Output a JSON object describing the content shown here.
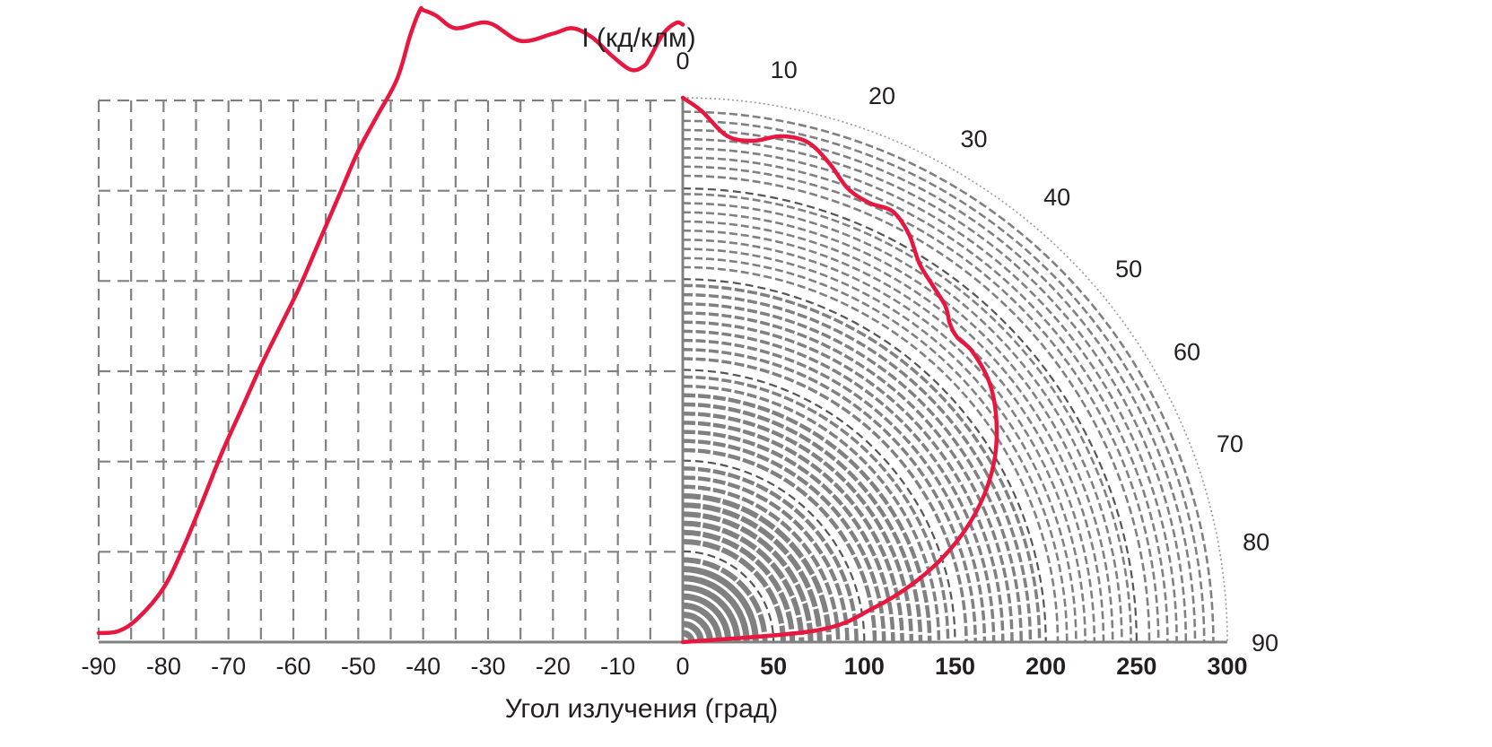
{
  "chart_data": {
    "type": "line",
    "y_axis_title": "I (кд/клм)",
    "x_axis_title": "Угол излучения (град)",
    "x_ticks": [
      "-90",
      "-80",
      "-70",
      "-60",
      "-50",
      "-40",
      "-30",
      "-20",
      "-10",
      "0"
    ],
    "r_ticks": [
      "50",
      "100",
      "150",
      "200",
      "250",
      "300"
    ],
    "angle_ticks": [
      "0",
      "10",
      "20",
      "30",
      "40",
      "50",
      "60",
      "70",
      "80",
      "90"
    ],
    "xlim": [
      -90,
      0
    ],
    "r_range": [
      0,
      300
    ],
    "grid": true,
    "colors": {
      "curve": "#e8173f",
      "grid": "#808080",
      "axis": "#808080",
      "text": "#231f20"
    },
    "series": [
      {
        "values_cartesian": {
          "x": [
            -90,
            -87,
            -84,
            -80,
            -77,
            -74,
            -71,
            -68,
            -65,
            -62,
            -59,
            -56,
            -53,
            -50,
            -47,
            -44,
            -42,
            -40.5,
            -40,
            -38,
            -35,
            -30,
            -25,
            -20,
            -17,
            -14,
            -11,
            -8,
            -6,
            -5,
            -3,
            -1,
            0
          ],
          "y": [
            5,
            6,
            13,
            30,
            52,
            78,
            105,
            129,
            153,
            175,
            197,
            222,
            247,
            272,
            292,
            312,
            336,
            350,
            350,
            347,
            340,
            343,
            333,
            337,
            340,
            335,
            325,
            317,
            319,
            324,
            337,
            343,
            342
          ]
        },
        "values_polar": {
          "angle": [
            0,
            2,
            5,
            8,
            11,
            14,
            17,
            20,
            23,
            26,
            29,
            32,
            35,
            38,
            40,
            42,
            45,
            50,
            55,
            60,
            65,
            70,
            75,
            80,
            85,
            90
          ],
          "r": [
            300,
            293,
            280,
            279,
            284,
            284,
            276,
            266,
            263,
            264,
            257,
            246,
            240,
            235,
            229,
            226,
            226,
            221,
            211,
            198,
            181,
            160,
            135,
            106,
            74,
            0
          ]
        }
      }
    ]
  }
}
